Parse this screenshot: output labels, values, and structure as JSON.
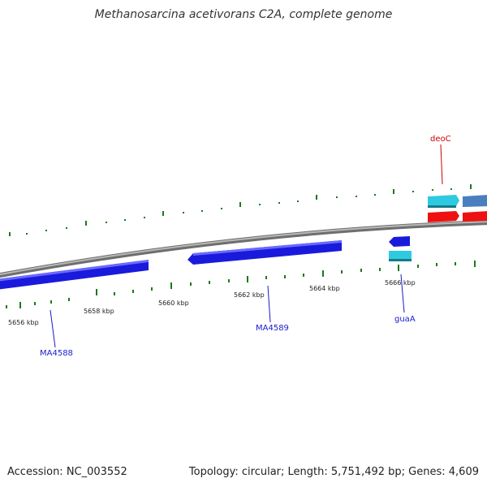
{
  "title": "Methanosarcina acetivorans C2A, complete genome",
  "footer": {
    "accession": "Accession: NC_003552",
    "summary": "Topology: circular; Length: 5,751,492 bp; Genes: 4,609"
  },
  "scale_labels": [
    "5656 kbp",
    "5658 kbp",
    "5660 kbp",
    "5662 kbp",
    "5664 kbp",
    "5666 kbp"
  ],
  "gene_labels": {
    "deoC": "deoC",
    "MA4588": "MA4588",
    "MA4589": "MA4589",
    "guaA": "guaA"
  },
  "colors": {
    "forward_cds": "#1a1adc",
    "rna": "#2ecbe0",
    "red_feature": "#ee1111",
    "steel_feature": "#4a7fbf",
    "backbone": "#8c8c8c",
    "ticks": "#1a7a1a",
    "label_red": "#cc0000",
    "label_blue": "#1a1acc"
  }
}
